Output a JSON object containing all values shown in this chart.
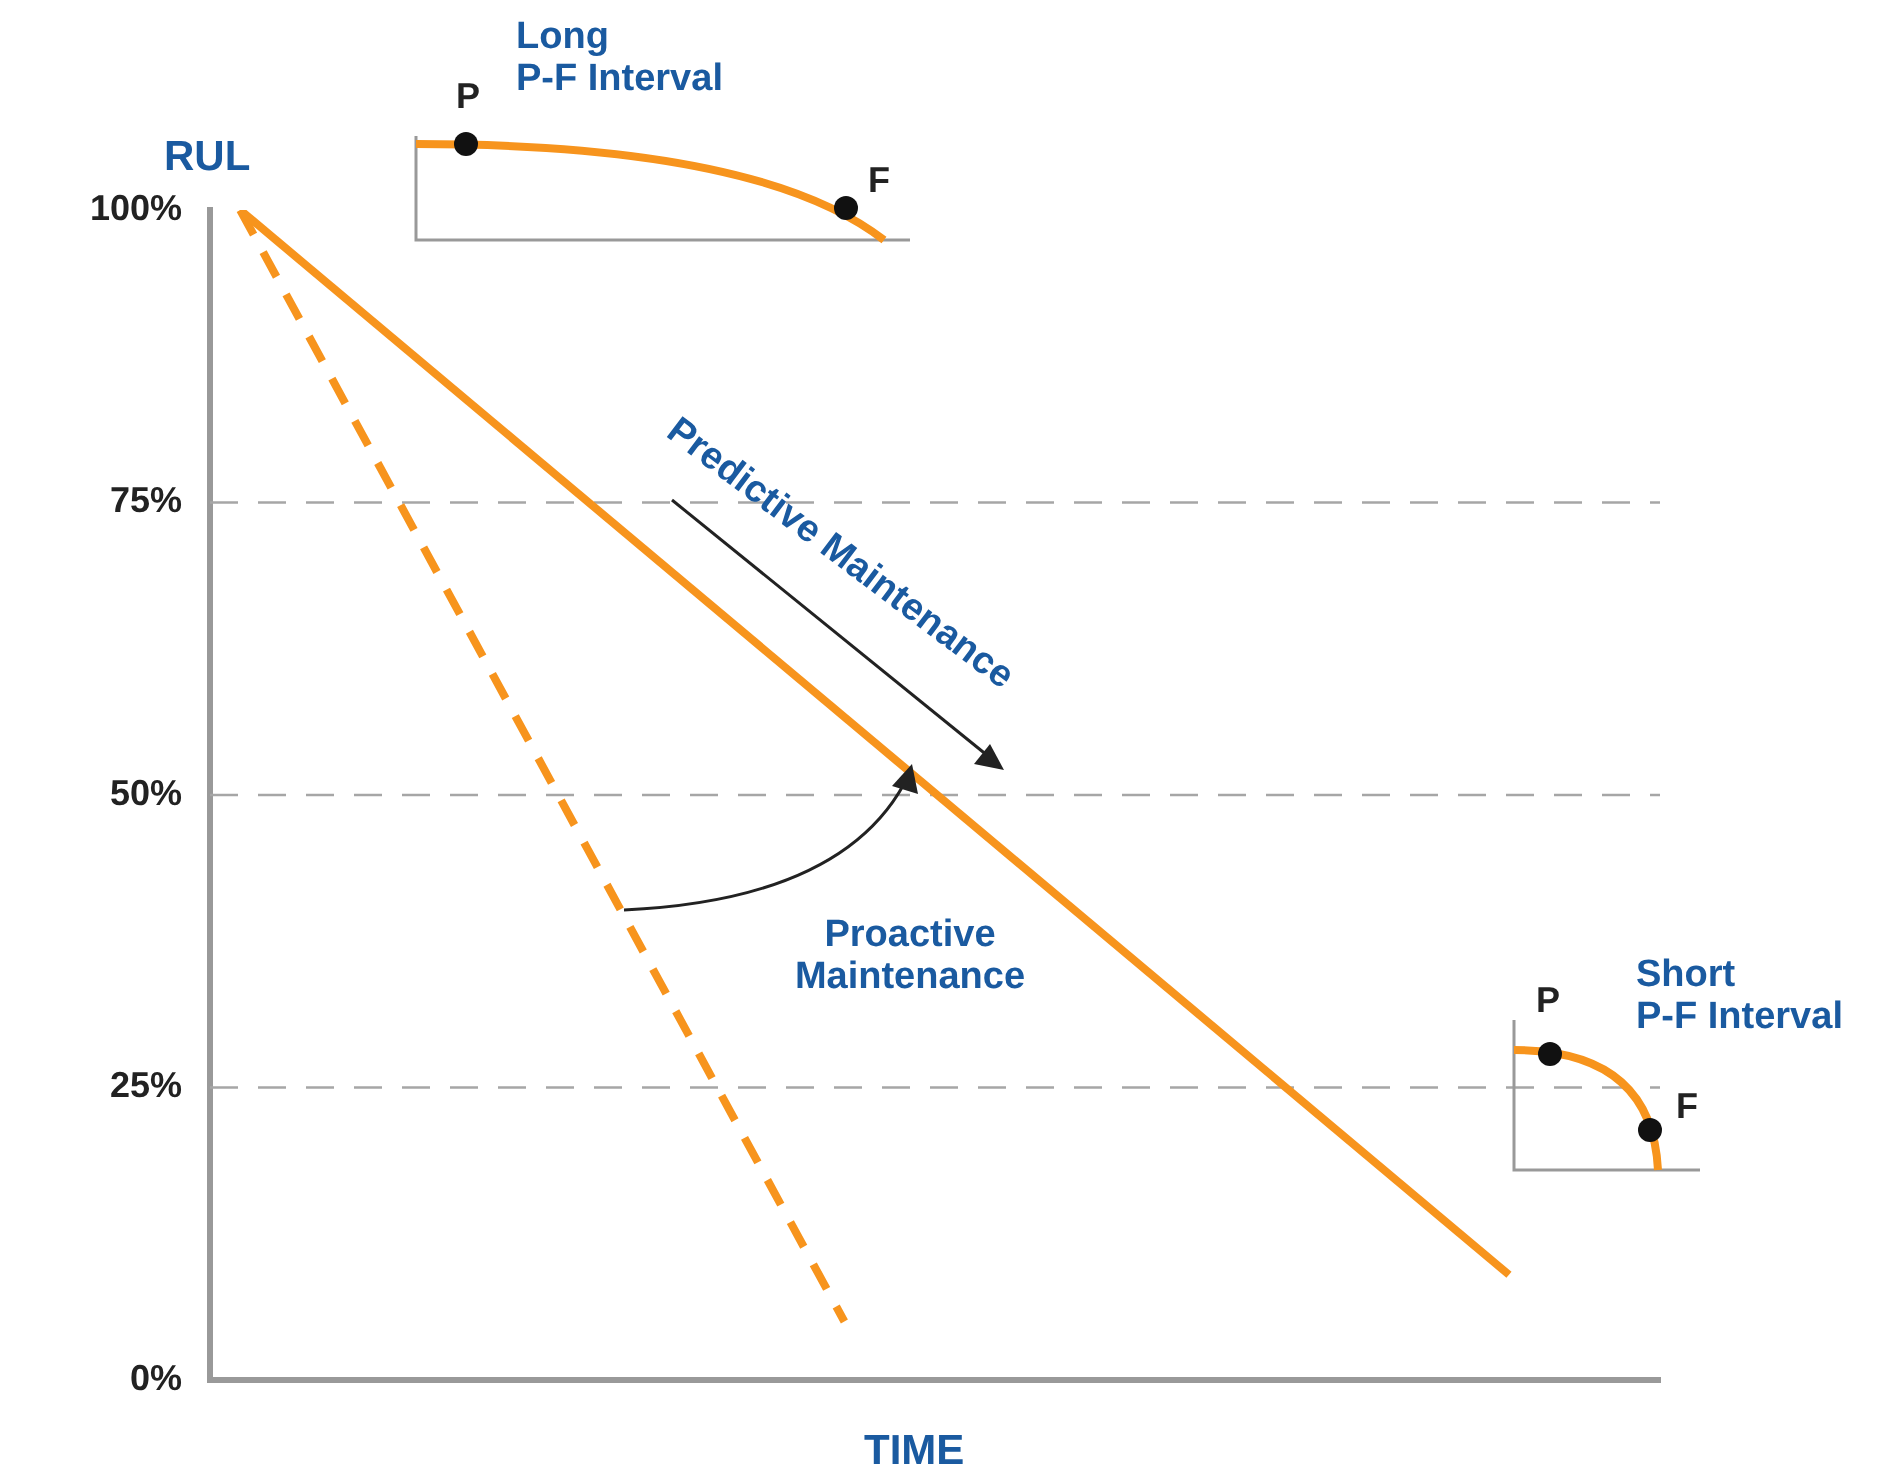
{
  "chart_data": {
    "type": "line",
    "xlabel": "TIME",
    "ylabel": "RUL",
    "categories": [
      null,
      null,
      null,
      null,
      null,
      null,
      null,
      null,
      null,
      null,
      null,
      null,
      null,
      null,
      null,
      null,
      null,
      null,
      null,
      null,
      null,
      null,
      null,
      null
    ],
    "series": [
      {
        "color": "#f7941d",
        "line_style": "solid",
        "values": [
          100,
          null,
          null,
          null,
          null,
          null,
          null,
          null,
          null,
          null,
          null,
          null,
          null,
          null,
          null,
          null,
          null,
          null,
          null,
          null,
          null,
          9,
          null,
          null
        ]
      },
      {
        "color": "#f7941d",
        "line_style": "dashed",
        "values": [
          100,
          null,
          null,
          null,
          null,
          null,
          null,
          null,
          null,
          null,
          5,
          null,
          null,
          null,
          null,
          null,
          null,
          null,
          null,
          null,
          null,
          null,
          null,
          null
        ]
      }
    ],
    "ylim": [
      0,
      100
    ],
    "yticks": [
      {
        "value": 0,
        "label": "0%"
      },
      {
        "value": 25,
        "label": "25%"
      },
      {
        "value": 50,
        "label": "50%"
      },
      {
        "value": 75,
        "label": "75%"
      },
      {
        "value": 100,
        "label": "100%"
      }
    ],
    "ref_lines": [
      {
        "axis": "y",
        "value": 25,
        "color": "#a6a6a6",
        "line_style": "dashed"
      },
      {
        "axis": "y",
        "value": 50,
        "color": "#a6a6a6",
        "line_style": "dashed"
      },
      {
        "axis": "y",
        "value": 75,
        "color": "#a6a6a6",
        "line_style": "dashed"
      }
    ],
    "marker": "none",
    "legend": false,
    "grid": false,
    "tick_labels": "y",
    "annotations": [
      "Long P-F Interval",
      "Short P-F Interval",
      "Predictive Maintenance",
      "Proactive Maintenance",
      "P",
      "F",
      "P",
      "F"
    ]
  }
}
